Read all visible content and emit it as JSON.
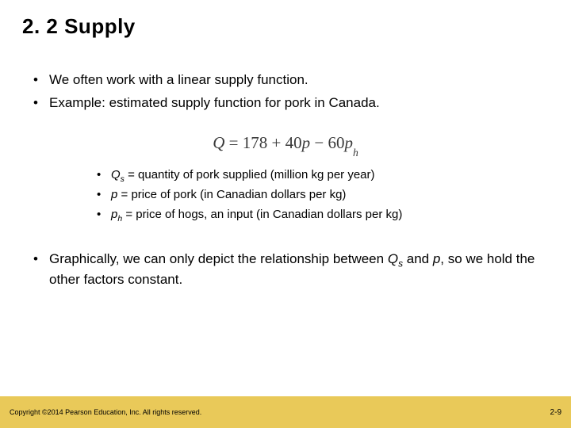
{
  "title": "2. 2  Supply",
  "bullets_top": [
    "We often work with a linear supply function.",
    "Example:  estimated supply function for pork in Canada."
  ],
  "equation": {
    "Q_var": "Q",
    "eq": " = ",
    "c0": "178",
    "plus": " + ",
    "c1": "40",
    "p_var": "p",
    "minus": " − ",
    "c2": "60",
    "ph_var": "p",
    "ph_sub": "h"
  },
  "defs": [
    {
      "sym": "Q",
      "sub": "s",
      "sep": " = ",
      "rest": "quantity of pork supplied (million kg per year)"
    },
    {
      "sym": "p",
      "sub": "",
      "sep": "  = ",
      "rest": "price of pork (in Canadian dollars per kg)"
    },
    {
      "sym": "p",
      "sub": "h",
      "sep": " = ",
      "rest": "price of hogs, an input (in Canadian dollars per kg)"
    }
  ],
  "bottom_bullet": {
    "pre": "Graphically, we can only depict the relationship between ",
    "sym1": "Q",
    "sub1": "s",
    "mid": " and ",
    "sym2": "p",
    "post": ", so we hold the other factors constant."
  },
  "footer": {
    "copyright": "Copyright ©2014 Pearson Education, Inc. All rights reserved.",
    "page": "2-9",
    "bg_color": "#e9c959"
  }
}
